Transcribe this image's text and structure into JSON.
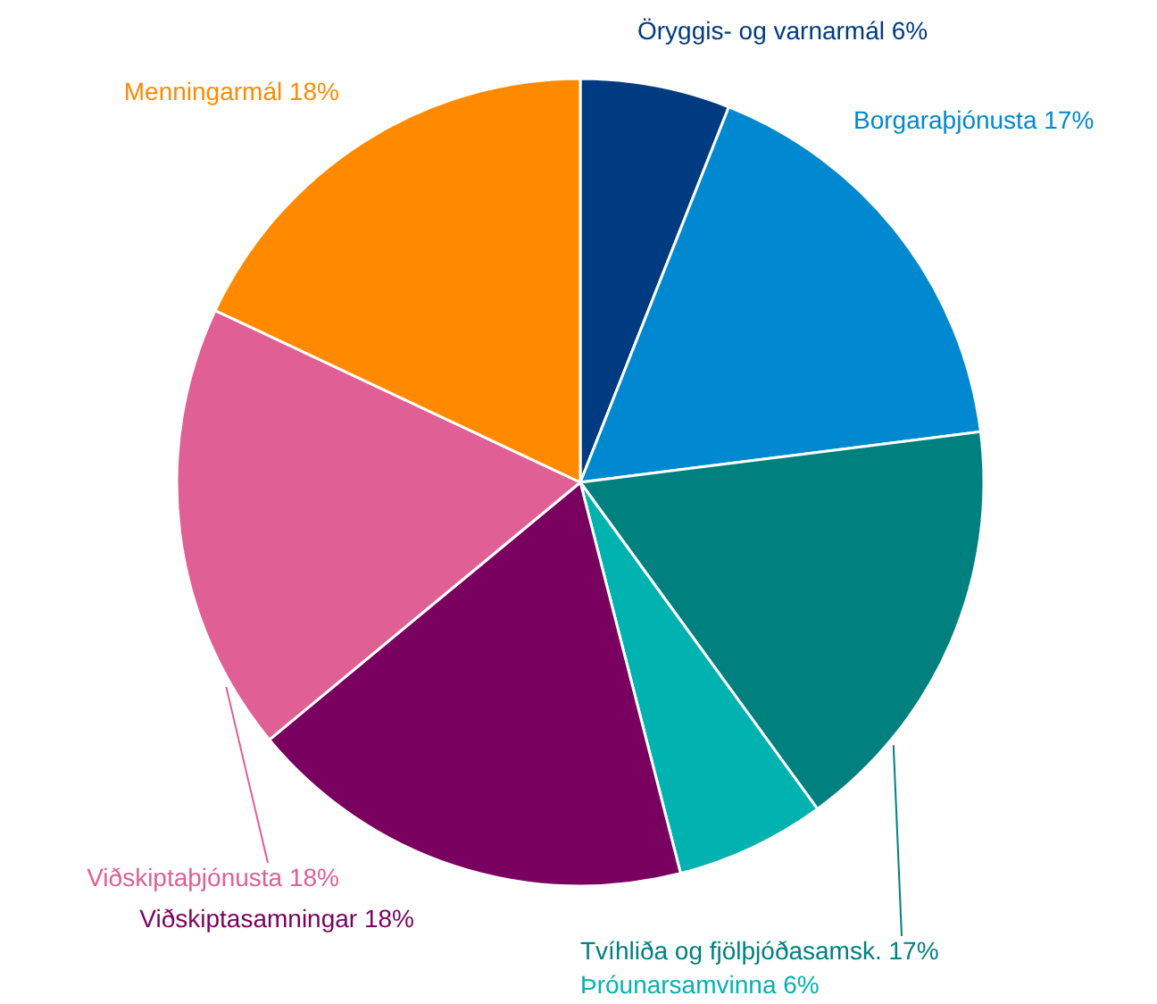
{
  "chart_data": {
    "type": "pie",
    "categories": [
      "Öryggis- og varnarmál",
      "Borgaraþjónusta",
      "Tvíhliða og fjölþjóðasamsk.",
      "Þróunarsamvinna",
      "Viðskiptasamningar",
      "Viðskiptaþjónusta",
      "Menningarmál"
    ],
    "values": [
      6,
      17,
      17,
      6,
      18,
      18,
      18
    ],
    "value_labels": [
      "6%",
      "17%",
      "17%",
      "6%",
      "18%",
      "18%",
      "18%"
    ],
    "colors": [
      "#003a80",
      "#0088d1",
      "#00807f",
      "#00b3b0",
      "#7a005f",
      "#e06095",
      "#ff8a00"
    ]
  }
}
